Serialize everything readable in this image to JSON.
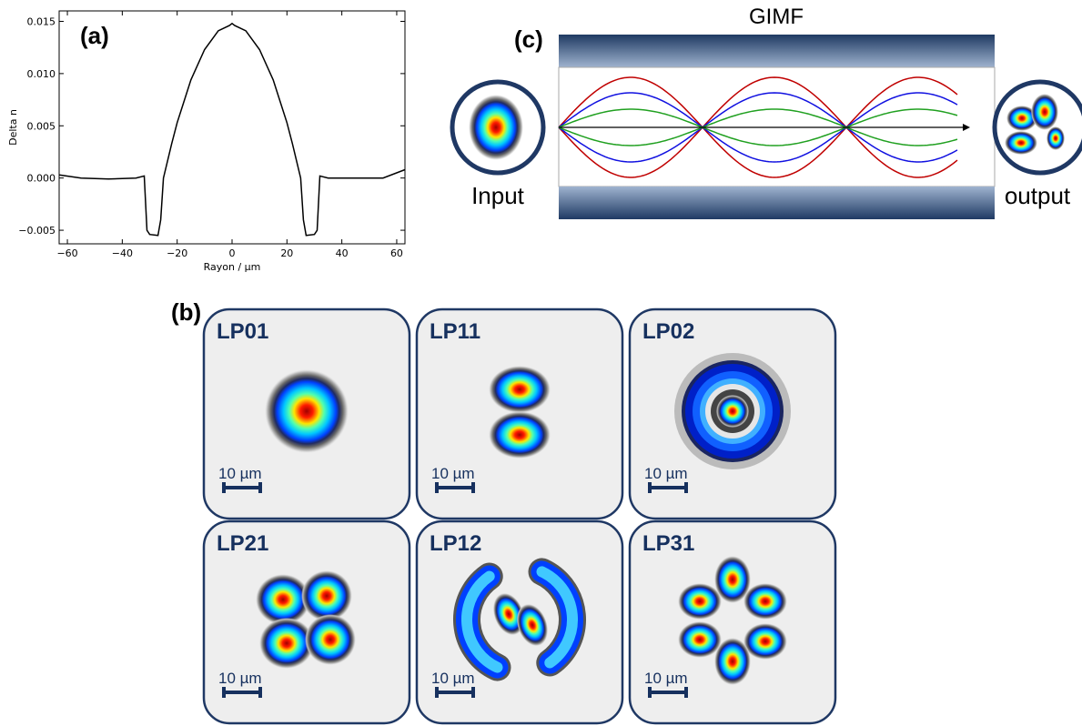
{
  "chart_data": {
    "type": "line",
    "panel": "(a)",
    "xlabel": "Rayon / µm",
    "ylabel": "Delta n",
    "color": "#000000",
    "x": [
      -63,
      -55,
      -45,
      -35,
      -32,
      -31,
      -30,
      -27,
      -26,
      -25,
      -22,
      -20,
      -15,
      -10,
      -5,
      -1,
      0,
      1,
      5,
      10,
      15,
      20,
      22,
      25,
      26,
      27,
      30,
      31,
      32,
      35,
      45,
      55,
      63
    ],
    "values": [
      0.0003,
      0,
      -0.0001,
      0,
      0.0002,
      -0.005,
      -0.0054,
      -0.0055,
      -0.004,
      0.0,
      0.0033,
      0.0053,
      0.0094,
      0.0123,
      0.0141,
      0.0146,
      0.0148,
      0.0146,
      0.0141,
      0.0123,
      0.0094,
      0.0053,
      0.0033,
      0.0,
      -0.004,
      -0.0055,
      -0.0054,
      -0.005,
      0.0002,
      0,
      0,
      0,
      0.0008
    ],
    "xlim": [
      -63,
      63
    ],
    "ylim": [
      -0.0063,
      0.016
    ],
    "xticks": [
      {
        "value": -60,
        "label": "−60"
      },
      {
        "value": -40,
        "label": "−40"
      },
      {
        "value": -20,
        "label": "−20"
      },
      0,
      20,
      40,
      60
    ],
    "yticks": [
      {
        "value": -0.005,
        "label": "−0.005"
      },
      {
        "value": 0,
        "label": "0.000"
      },
      0.005,
      {
        "value": 0.01,
        "label": "0.010"
      },
      0.015
    ]
  },
  "panel_c": {
    "label": "(c)",
    "title": "GIMF",
    "input_label": "Input",
    "output_label": "output"
  },
  "panel_b": {
    "label": "(b)",
    "modes": [
      {
        "name": "LP01",
        "scale": "10 µm"
      },
      {
        "name": "LP11",
        "scale": "10 µm"
      },
      {
        "name": "LP02",
        "scale": "10 µm"
      },
      {
        "name": "LP21",
        "scale": "10 µm"
      },
      {
        "name": "LP12",
        "scale": "10 µm"
      },
      {
        "name": "LP31",
        "scale": "10 µm"
      }
    ]
  }
}
